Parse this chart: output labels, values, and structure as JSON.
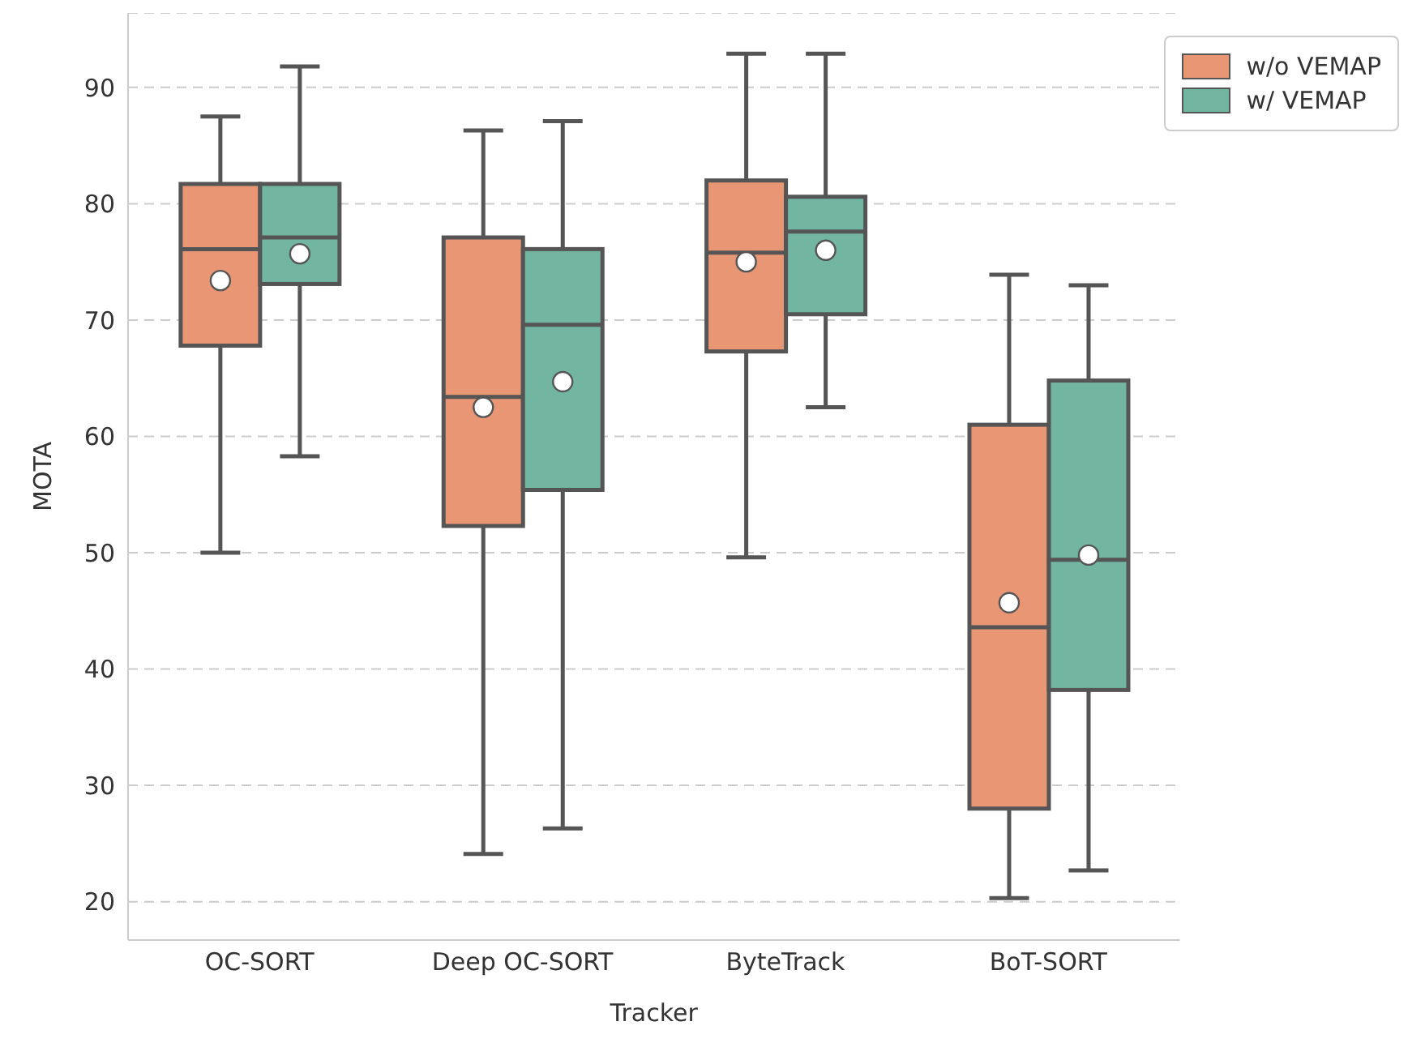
{
  "chart_data": {
    "type": "box",
    "xlabel": "Tracker",
    "ylabel": "MOTA",
    "categories": [
      "OC-SORT",
      "Deep OC-SORT",
      "ByteTrack",
      "BoT-SORT"
    ],
    "ylim": [
      16.7,
      96.4
    ],
    "yticks": [
      20,
      30,
      40,
      50,
      60,
      70,
      80,
      90
    ],
    "grid": "y",
    "legend": "top right",
    "series": [
      {
        "name": "w/o VEMAP",
        "color": "#e99675",
        "boxes": [
          {
            "low": 50.0,
            "q1": 67.8,
            "median": 76.1,
            "q3": 81.7,
            "high": 87.5,
            "mean": 73.4
          },
          {
            "low": 24.1,
            "q1": 52.3,
            "median": 63.4,
            "q3": 77.1,
            "high": 86.3,
            "mean": 62.5
          },
          {
            "low": 49.6,
            "q1": 67.3,
            "median": 75.8,
            "q3": 82.0,
            "high": 92.9,
            "mean": 75.0
          },
          {
            "low": 20.3,
            "q1": 28.0,
            "median": 43.6,
            "q3": 61.0,
            "high": 73.9,
            "mean": 45.7
          }
        ]
      },
      {
        "name": "w/ VEMAP",
        "color": "#72b6a1",
        "boxes": [
          {
            "low": 58.3,
            "q1": 73.1,
            "median": 77.1,
            "q3": 81.7,
            "high": 91.8,
            "mean": 75.7
          },
          {
            "low": 26.3,
            "q1": 55.4,
            "median": 69.6,
            "q3": 76.1,
            "high": 87.1,
            "mean": 64.7
          },
          {
            "low": 62.5,
            "q1": 70.5,
            "median": 77.6,
            "q3": 80.6,
            "high": 92.9,
            "mean": 76.0
          },
          {
            "low": 22.7,
            "q1": 38.2,
            "median": 49.4,
            "q3": 64.8,
            "high": 73.0,
            "mean": 49.8
          }
        ]
      }
    ]
  }
}
